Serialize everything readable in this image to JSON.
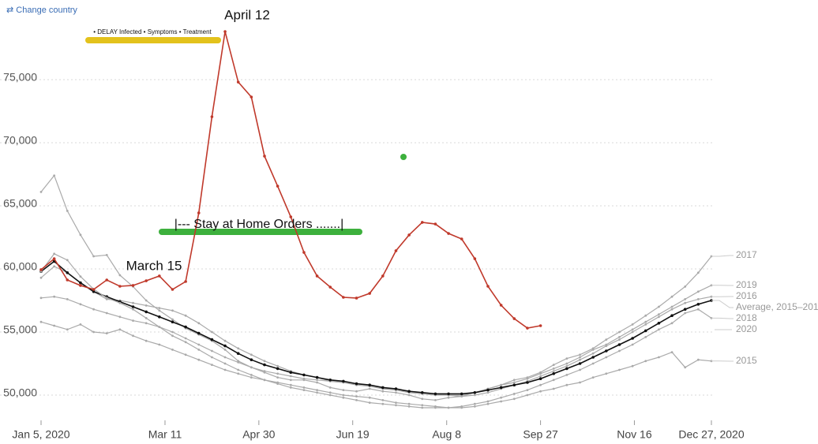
{
  "chart_data": {
    "type": "line",
    "link": "⇄ Change country",
    "annotations": [
      "April 12",
      "March 15",
      "|--- Stay at Home Orders .......|",
      "• DELAY Infected • Symptoms • Treatment"
    ],
    "x": [
      1,
      2,
      3,
      4,
      5,
      6,
      7,
      8,
      9,
      10,
      11,
      12,
      13,
      14,
      15,
      16,
      17,
      18,
      19,
      20,
      21,
      22,
      23,
      24,
      25,
      26,
      27,
      28,
      29,
      30,
      31,
      32,
      33,
      34,
      35,
      36,
      37,
      38,
      39,
      40,
      41,
      42,
      43,
      44,
      45,
      46,
      47,
      48,
      49,
      50,
      51,
      52
    ],
    "xlim": [
      1,
      52
    ],
    "xticks": [
      {
        "value": 1,
        "label": "Jan 5, 2020"
      },
      {
        "value": 10.43,
        "label": "Mar 11"
      },
      {
        "value": 17.57,
        "label": "Apr 30"
      },
      {
        "value": 24.71,
        "label": "Jun 19"
      },
      {
        "value": 31.86,
        "label": "Aug 8"
      },
      {
        "value": 39,
        "label": "Sep 27"
      },
      {
        "value": 46.14,
        "label": "Nov 16"
      },
      {
        "value": 52,
        "label": "Dec 27, 2020"
      }
    ],
    "ylim": [
      48000,
      81000
    ],
    "yticks": [
      {
        "value": 50000,
        "label": "50,000"
      },
      {
        "value": 55000,
        "label": "55,000"
      },
      {
        "value": 60000,
        "label": "60,000"
      },
      {
        "value": 65000,
        "label": "65,000"
      },
      {
        "value": 70000,
        "label": "70,000"
      },
      {
        "value": 75000,
        "label": "75,000"
      }
    ],
    "grid": true,
    "series": [
      {
        "name": "2017",
        "color": "#aaaaaa",
        "values": [
          66100,
          67400,
          64600,
          62700,
          61000,
          61100,
          59500,
          58600,
          57500,
          56700,
          56000,
          55300,
          54800,
          54300,
          53600,
          52700,
          52200,
          51800,
          51400,
          51200,
          51200,
          51000,
          50600,
          50400,
          50300,
          50500,
          50300,
          50200,
          50000,
          49700,
          49600,
          49800,
          49900,
          50200,
          50500,
          50800,
          51200,
          51400,
          51800,
          52400,
          52900,
          53200,
          53700,
          54400,
          55000,
          55600,
          56300,
          57000,
          57800,
          58600,
          59700,
          61000
        ]
      },
      {
        "name": "2019",
        "color": "#aaaaaa",
        "values": [
          57700,
          57800,
          57600,
          57200,
          56800,
          56500,
          56200,
          55900,
          55700,
          55400,
          55000,
          54500,
          54000,
          53500,
          53000,
          52600,
          52200,
          51900,
          51700,
          51500,
          51300,
          51200,
          51100,
          51000,
          50900,
          50800,
          50600,
          50400,
          50200,
          50100,
          50000,
          50000,
          50000,
          50200,
          50500,
          50800,
          51000,
          51300,
          51700,
          52100,
          52500,
          53000,
          53600,
          54000,
          54600,
          55200,
          55800,
          56400,
          57000,
          57600,
          58200,
          58700
        ]
      },
      {
        "name": "2016",
        "color": "#aaaaaa",
        "values": [
          59300,
          60200,
          59700,
          58900,
          58200,
          57600,
          57500,
          57300,
          57100,
          56900,
          56700,
          56300,
          55700,
          55000,
          54300,
          53700,
          53200,
          52700,
          52300,
          51900,
          51600,
          51400,
          51100,
          51000,
          50800,
          50700,
          50500,
          50400,
          50300,
          50200,
          50100,
          50000,
          49900,
          50000,
          50200,
          50500,
          50800,
          51100,
          51500,
          51900,
          52300,
          52800,
          53300,
          53900,
          54400,
          55000,
          55600,
          56200,
          56800,
          57300,
          57600,
          57800
        ]
      },
      {
        "name": "Average, 2015–201",
        "color": "#111111",
        "values": [
          59800,
          60600,
          59700,
          58900,
          58200,
          57800,
          57400,
          57000,
          56600,
          56200,
          55800,
          55400,
          54900,
          54400,
          53900,
          53300,
          52800,
          52400,
          52100,
          51800,
          51600,
          51400,
          51200,
          51100,
          50900,
          50800,
          50600,
          50500,
          50300,
          50200,
          50100,
          50100,
          50100,
          50200,
          50400,
          50600,
          50800,
          51000,
          51300,
          51700,
          52100,
          52500,
          53000,
          53500,
          54000,
          54500,
          55100,
          55700,
          56300,
          56800,
          57200,
          57500
        ]
      },
      {
        "name": "2018",
        "color": "#aaaaaa",
        "values": [
          59800,
          61200,
          60700,
          59400,
          58400,
          57700,
          57300,
          56800,
          56100,
          55400,
          54700,
          54200,
          53600,
          53000,
          52500,
          52000,
          51600,
          51200,
          50900,
          50600,
          50400,
          50200,
          50000,
          49800,
          49600,
          49400,
          49300,
          49200,
          49100,
          49000,
          49000,
          49000,
          49100,
          49300,
          49500,
          49800,
          50100,
          50400,
          50800,
          51200,
          51600,
          52000,
          52500,
          53000,
          53500,
          54000,
          54600,
          55200,
          55700,
          56500,
          56800,
          56100
        ]
      },
      {
        "name": "2020",
        "color": "#c0392b",
        "values": [
          59940,
          60810,
          59125,
          58690,
          58375,
          59125,
          58625,
          58690,
          59060,
          59440,
          58375,
          59000,
          64440,
          72060,
          78810,
          74810,
          73625,
          68940,
          66560,
          64125,
          61310,
          59440,
          58560,
          57750,
          57690,
          58060,
          59440,
          61440,
          62690,
          63690,
          63560,
          62810,
          62375,
          60810,
          58625,
          57125,
          56060,
          55310,
          55500,
          null,
          null,
          null,
          null,
          null,
          null,
          null,
          null,
          null,
          null,
          null,
          null,
          null
        ]
      },
      {
        "name": "2015",
        "color": "#aaaaaa",
        "values": [
          55800,
          55500,
          55200,
          55600,
          55000,
          54900,
          55200,
          54700,
          54300,
          54000,
          53600,
          53200,
          52800,
          52400,
          52000,
          51700,
          51400,
          51200,
          51000,
          50800,
          50600,
          50400,
          50200,
          50000,
          49900,
          49800,
          49600,
          49400,
          49300,
          49200,
          49100,
          49000,
          49000,
          49100,
          49300,
          49500,
          49700,
          50000,
          50300,
          50500,
          50800,
          51000,
          51400,
          51700,
          52000,
          52300,
          52700,
          53000,
          53400,
          52200,
          52800,
          52700
        ]
      }
    ]
  }
}
